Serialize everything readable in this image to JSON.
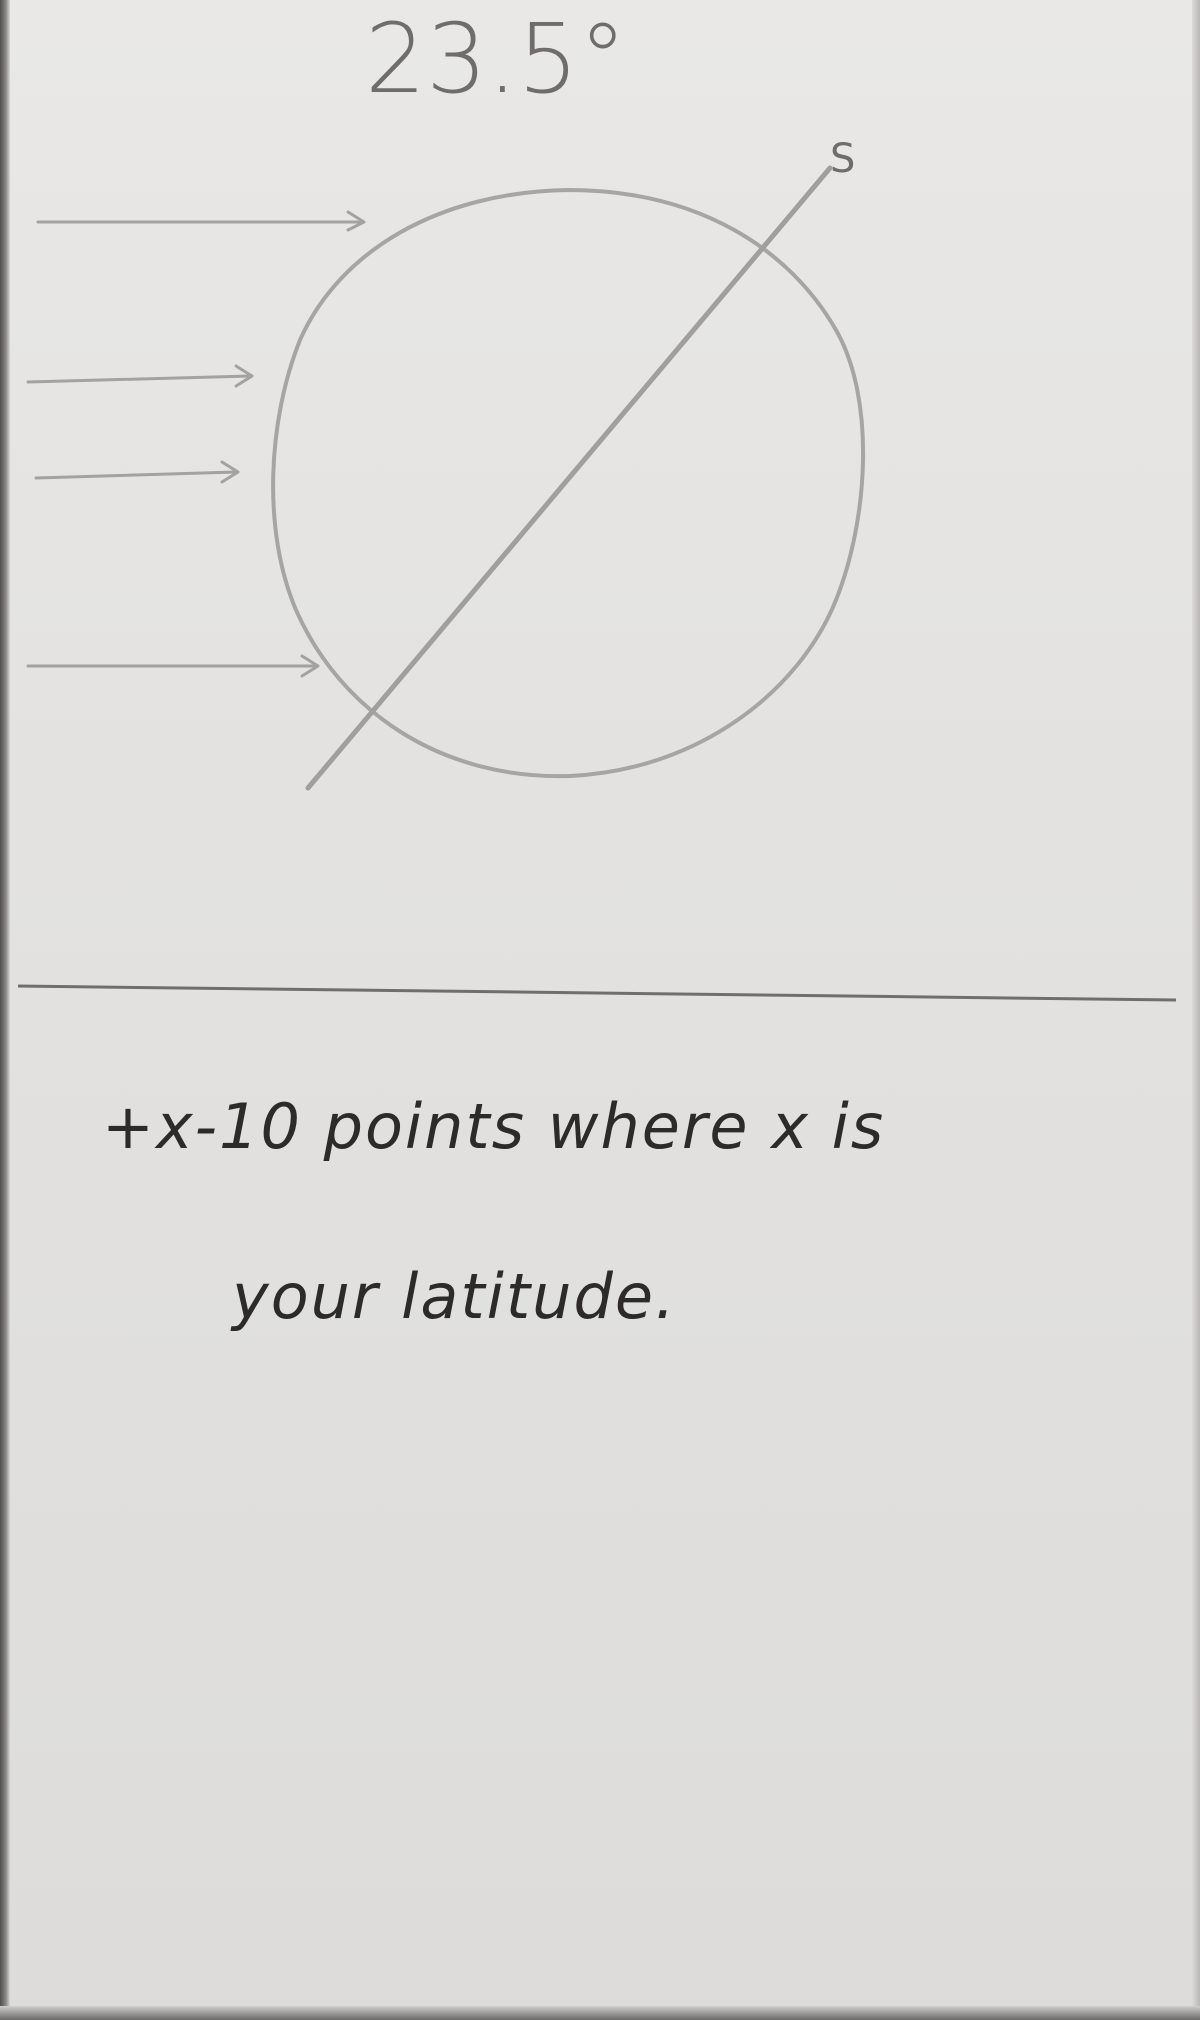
{
  "sketch": {
    "angle_label": "23.5°",
    "axis_pole_label": "S",
    "note_line_1": "+x-10 points where x is",
    "note_line_2": "your latitude."
  },
  "colors": {
    "paper": "#e5e4e2",
    "pencil": "#9a9997",
    "ink": "#2c2b2a",
    "background": "#5d5c5a"
  }
}
